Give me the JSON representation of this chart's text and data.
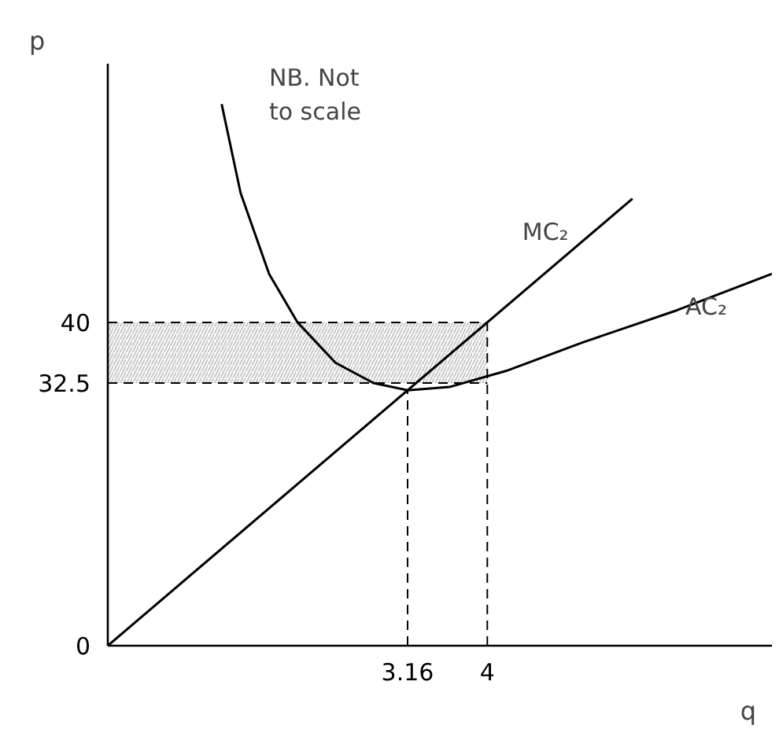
{
  "chart_data": {
    "type": "line",
    "xlabel": "q",
    "ylabel": "p",
    "annotations": [
      "NB.  Not\nto scale"
    ],
    "series": [
      {
        "name": "MC₂",
        "color": "#000000",
        "x": [
          0,
          5.53
        ],
        "values": [
          0,
          55.3
        ]
      },
      {
        "name": "AC₂",
        "color": "#000000",
        "x": [
          1.2,
          1.4,
          1.7,
          2.0,
          2.4,
          2.8,
          3.16,
          3.6,
          4.2,
          5,
          6,
          7
        ],
        "values": [
          67,
          56,
          46,
          40,
          35,
          32.5,
          31.6,
          32,
          34,
          37.5,
          41.5,
          46
        ]
      }
    ],
    "xlim": [
      0,
      7
    ],
    "ylim": [
      0,
      72
    ],
    "xticks": [
      3.16,
      4
    ],
    "yticks": [
      0,
      32.5,
      40
    ],
    "ref_lines": [
      {
        "axis": "x",
        "value": 3.16,
        "label": null,
        "line_style": "dashed"
      },
      {
        "axis": "x",
        "value": 4,
        "label": null,
        "line_style": "dashed"
      },
      {
        "axis": "y",
        "value": 40,
        "label": null,
        "line_style": "dashed"
      },
      {
        "axis": "y",
        "value": 32.5,
        "label": null,
        "line_style": "dashed"
      }
    ],
    "bands": [
      {
        "axis": "y",
        "from": 32.5,
        "to": 40,
        "label": null,
        "color": "#c8c8c8"
      }
    ],
    "grid": false,
    "marker": "none",
    "line_style": "solid"
  }
}
